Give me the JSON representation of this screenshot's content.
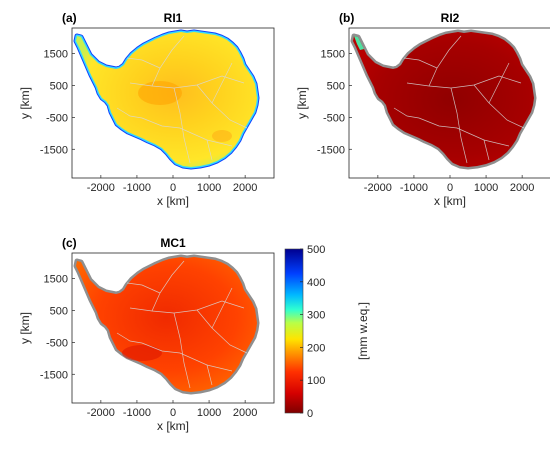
{
  "panels": [
    {
      "label": "(a)",
      "title": "RI1",
      "colormode": "ri1"
    },
    {
      "label": "(b)",
      "title": "RI2",
      "colormode": "ri2"
    },
    {
      "label": "(c)",
      "title": "MC1",
      "colormode": "mc1"
    }
  ],
  "axes": {
    "xlabel": "x [km]",
    "ylabel": "y [km]",
    "xticks": [
      "-2000",
      "-1000",
      "0",
      "1000",
      "2000"
    ],
    "yticks": [
      "1500",
      "500",
      "-500",
      "-1500"
    ],
    "xlim": [
      -2800,
      2800
    ],
    "ylim": [
      -2400,
      2300
    ]
  },
  "colorbar": {
    "label": "[mm w.eq.]",
    "ticks": [
      "500",
      "400",
      "300",
      "200",
      "100",
      "0"
    ],
    "range": [
      0,
      500
    ],
    "colormap": "jet-like",
    "colors": [
      "#7f0000",
      "#ff0000",
      "#ff8000",
      "#ffff00",
      "#80ff80",
      "#00ffff",
      "#0080ff",
      "#0000ff",
      "#00008f"
    ]
  }
}
